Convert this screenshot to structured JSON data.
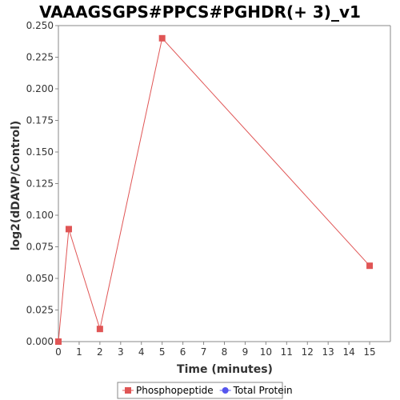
{
  "chart_data": {
    "type": "line",
    "title": "VAAAGSGPS#PPCS#PGHDR(+ 3)_v1",
    "xlabel": "Time (minutes)",
    "ylabel": "log2(dDAVP/Control)",
    "xlim": [
      0,
      16
    ],
    "ylim": [
      0,
      0.25
    ],
    "x_ticks": [
      0,
      1,
      2,
      3,
      4,
      5,
      6,
      7,
      8,
      9,
      10,
      11,
      12,
      13,
      14,
      15
    ],
    "y_ticks": [
      0.0,
      0.025,
      0.05,
      0.075,
      0.1,
      0.125,
      0.15,
      0.175,
      0.2,
      0.225,
      0.25
    ],
    "grid": false,
    "legend_position": "bottom",
    "series": [
      {
        "name": "Phosphopeptide",
        "color": "#e05555",
        "marker": "square",
        "points": [
          {
            "x": 0,
            "y": 0.0
          },
          {
            "x": 0.5,
            "y": 0.089
          },
          {
            "x": 2,
            "y": 0.01
          },
          {
            "x": 5,
            "y": 0.24
          },
          {
            "x": 15,
            "y": 0.06
          }
        ]
      },
      {
        "name": "Total Protein",
        "color": "#5555ee",
        "marker": "circle",
        "points": []
      }
    ]
  }
}
